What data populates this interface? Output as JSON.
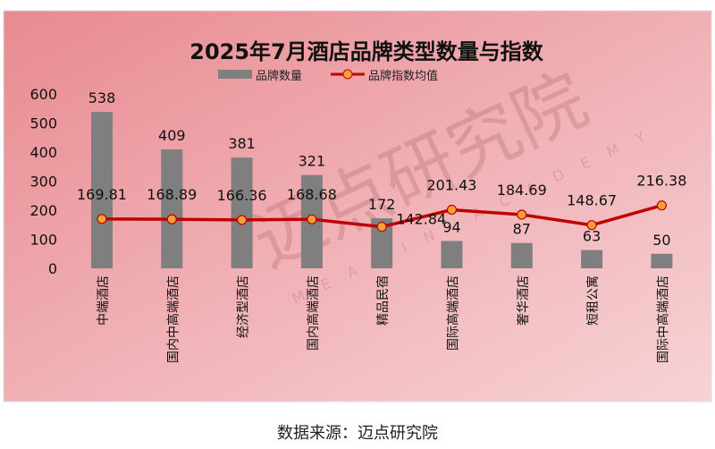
{
  "chart_data": {
    "type": "bar+line",
    "title": "2025年7月酒店品牌类型数量与指数",
    "categories": [
      "中端酒店",
      "国内中高端酒店",
      "经济型酒店",
      "国内高端酒店",
      "精品民宿",
      "国际高端酒店",
      "奢华酒店",
      "短租公寓",
      "国际中高端酒店"
    ],
    "series": [
      {
        "name": "品牌数量",
        "type": "bar",
        "values": [
          538,
          409,
          381,
          321,
          172,
          94,
          87,
          63,
          50
        ],
        "labels": [
          "538",
          "409",
          "381",
          "321",
          "172",
          "94",
          "87",
          "63",
          "50"
        ],
        "color": "#7f7f7f"
      },
      {
        "name": "品牌指数均值",
        "type": "line",
        "values": [
          169.81,
          168.89,
          166.36,
          168.68,
          142.84,
          201.43,
          184.69,
          148.67,
          216.38
        ],
        "labels": [
          "169.81",
          "168.89",
          "166.36",
          "168.68",
          "142.84",
          "201.43",
          "184.69",
          "148.67",
          "216.38"
        ],
        "color": "#c00000",
        "marker_color": "#f4a13a"
      }
    ],
    "yticks": [
      "0",
      "100",
      "200",
      "300",
      "400",
      "500",
      "600"
    ],
    "ylim": [
      0,
      600
    ],
    "grid": false,
    "legend": "top"
  },
  "watermark": {
    "text": "迈点研究院",
    "subtext": "MEADIN ACADEMY"
  },
  "source": "数据来源：迈点研究院"
}
